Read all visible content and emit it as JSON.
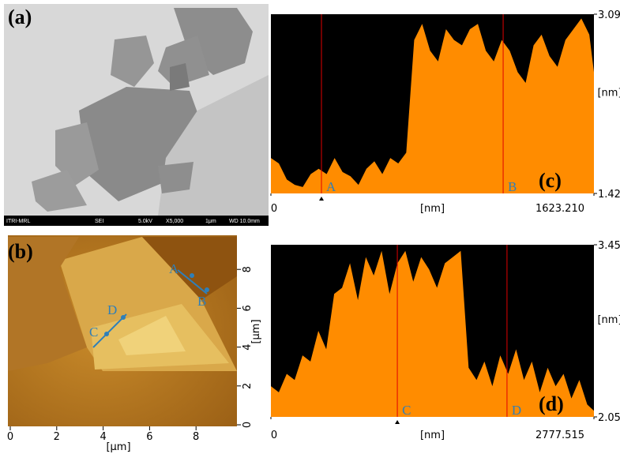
{
  "panels": {
    "a": {
      "label": "(a)",
      "footer": [
        "ITRI-MRL",
        "SEI",
        "5.0kV",
        "X5,000",
        "1μm",
        "WD 10.0mm"
      ]
    },
    "b": {
      "label": "(b)",
      "xticks": [
        "0",
        "2",
        "4",
        "6",
        "8"
      ],
      "yticks": [
        "0",
        "2",
        "4",
        "6",
        "8"
      ],
      "xlabel": "[μm]",
      "ylabel": "[μm]",
      "points": [
        "A",
        "B",
        "C",
        "D"
      ]
    }
  },
  "chart_data": [
    {
      "type": "area",
      "label": "(c)",
      "xlabel": "[nm]",
      "ylabel": "[nm]",
      "color": "#ff8c00",
      "x": [
        0,
        40,
        80,
        120,
        160,
        200,
        240,
        280,
        320,
        360,
        400,
        440,
        480,
        520,
        560,
        600,
        640,
        680,
        720,
        760,
        800,
        840,
        880,
        920,
        960,
        1000,
        1040,
        1080,
        1120,
        1160,
        1200,
        1240,
        1280,
        1320,
        1360,
        1400,
        1440,
        1480,
        1520,
        1560,
        1600,
        1623.21
      ],
      "values": [
        1.75,
        1.7,
        1.55,
        1.5,
        1.48,
        1.6,
        1.65,
        1.6,
        1.75,
        1.62,
        1.58,
        1.5,
        1.65,
        1.72,
        1.6,
        1.75,
        1.7,
        1.8,
        2.85,
        3.0,
        2.75,
        2.65,
        2.95,
        2.85,
        2.8,
        2.95,
        3.0,
        2.75,
        2.65,
        2.85,
        2.75,
        2.55,
        2.45,
        2.8,
        2.9,
        2.7,
        2.6,
        2.85,
        2.95,
        3.05,
        2.9,
        2.55
      ],
      "xlim": [
        0,
        1623.21
      ],
      "xticks": [
        0,
        {
          "value": 1623.21,
          "label": "1623.210"
        }
      ],
      "ylim": [
        1.42,
        3.09
      ],
      "yticks": [
        1.42,
        3.09
      ],
      "markers": [
        {
          "label": "A",
          "x": 254
        },
        {
          "label": "B",
          "x": 1167
        }
      ]
    },
    {
      "type": "area",
      "label": "(d)",
      "xlabel": "[nm]",
      "ylabel": "[nm]",
      "color": "#ff8c00",
      "x": [
        0,
        68,
        136,
        204,
        272,
        340,
        408,
        476,
        544,
        612,
        680,
        748,
        816,
        884,
        952,
        1020,
        1088,
        1156,
        1224,
        1292,
        1360,
        1428,
        1496,
        1564,
        1632,
        1700,
        1768,
        1836,
        1904,
        1972,
        2040,
        2108,
        2176,
        2244,
        2312,
        2380,
        2448,
        2516,
        2584,
        2652,
        2720,
        2777.515
      ],
      "values": [
        2.3,
        2.25,
        2.4,
        2.35,
        2.55,
        2.5,
        2.75,
        2.6,
        3.05,
        3.1,
        3.3,
        3.0,
        3.35,
        3.2,
        3.4,
        3.05,
        3.3,
        3.4,
        3.15,
        3.35,
        3.25,
        3.1,
        3.3,
        3.35,
        3.4,
        2.45,
        2.35,
        2.5,
        2.3,
        2.55,
        2.4,
        2.6,
        2.35,
        2.5,
        2.25,
        2.45,
        2.3,
        2.4,
        2.2,
        2.35,
        2.15,
        2.1
      ],
      "xlim": [
        0,
        2777.515
      ],
      "xticks": [
        0,
        2777.515
      ],
      "ylim": [
        2.05,
        3.45
      ],
      "yticks": [
        2.05,
        3.45
      ],
      "markers": [
        {
          "label": "C",
          "x": 1087
        },
        {
          "label": "D",
          "x": 2030
        }
      ]
    }
  ]
}
